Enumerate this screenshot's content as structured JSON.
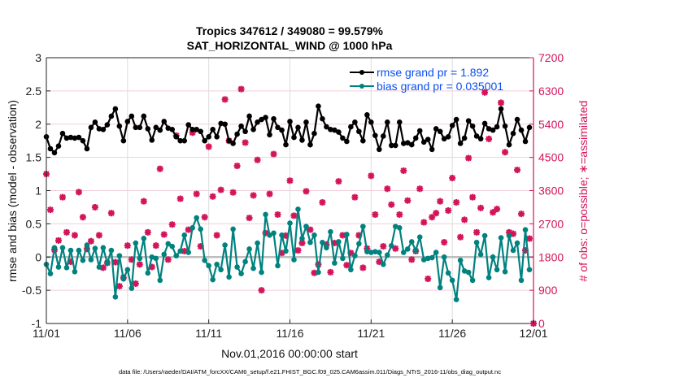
{
  "chart_data": {
    "type": "line",
    "title": [
      "Tropics 347612 / 349080 = 99.579%",
      "SAT_HORIZONTAL_WIND @ 1000 hPa"
    ],
    "xlabel": "Nov.01,2016 00:00:00 start",
    "ylabel": "rmse and bias (model - observation)",
    "y2label": "# of obs: o=possible; ∗=assimilated",
    "footnote": "data file: /Users/raeder/DAI/ATM_forcXX/CAM6_setup/f.e21.FHIST_BGC.f09_025.CAM6assim.011/Diags_NTrS_2016-11/obs_diag_output.nc",
    "x_unit": "days since 11/01 00:00",
    "x_step_days": 0.25,
    "xlim": [
      0,
      30
    ],
    "xticks": [
      0,
      5,
      10,
      15,
      20,
      25,
      30
    ],
    "xtick_labels": [
      "11/01",
      "11/06",
      "11/11",
      "11/16",
      "11/21",
      "11/26",
      "12/01"
    ],
    "ylim": [
      -1,
      3
    ],
    "yticks": [
      -1,
      -0.5,
      0,
      0.5,
      1,
      1.5,
      2,
      2.5,
      3
    ],
    "ytick_labels": [
      "-1",
      "-0.5",
      "0",
      "0.5",
      "1",
      "1.5",
      "2",
      "2.5",
      "3"
    ],
    "y2lim": [
      0,
      7200
    ],
    "y2ticks": [
      0,
      900,
      1800,
      2700,
      3600,
      4500,
      5400,
      6300,
      7200
    ],
    "y2tick_labels": [
      "0",
      "900",
      "1800",
      "2700",
      "3600",
      "4500",
      "5400",
      "6300",
      "7200"
    ],
    "grid": true,
    "legend_position": "top-right",
    "series": [
      {
        "name": "rmse grand pr = 1.892",
        "color": "#000000",
        "axis": "left",
        "values": [
          1.81,
          1.63,
          1.57,
          1.67,
          1.86,
          1.79,
          1.8,
          1.79,
          1.8,
          1.75,
          1.63,
          1.95,
          2.03,
          1.93,
          1.92,
          1.99,
          2.12,
          2.23,
          1.97,
          1.75,
          2.04,
          2.12,
          1.95,
          1.95,
          2.12,
          1.93,
          1.76,
          1.95,
          1.91,
          2.04,
          1.94,
          1.92,
          1.81,
          1.75,
          1.75,
          1.99,
          1.92,
          1.92,
          1.89,
          1.75,
          1.81,
          1.92,
          1.81,
          2.01,
          2.0,
          1.75,
          1.71,
          1.85,
          1.97,
          1.89,
          2.12,
          1.92,
          2.03,
          2.07,
          2.1,
          1.84,
          2.08,
          1.95,
          1.91,
          1.69,
          2.04,
          1.8,
          1.95,
          1.76,
          2.03,
          1.69,
          1.86,
          2.27,
          2.08,
          1.96,
          1.92,
          1.91,
          1.88,
          1.79,
          1.74,
          1.96,
          2.03,
          1.89,
          1.75,
          2.14,
          2.03,
          1.83,
          1.62,
          1.82,
          2.03,
          1.68,
          1.68,
          2.03,
          1.71,
          1.72,
          1.69,
          1.79,
          1.9,
          1.73,
          1.77,
          1.62,
          1.93,
          1.89,
          1.78,
          1.81,
          1.98,
          2.07,
          1.71,
          1.79,
          2.05,
          1.97,
          1.82,
          1.78,
          2.01,
          1.93,
          1.91,
          1.96,
          2.23,
          1.97,
          1.69,
          1.86,
          2.07,
          1.91,
          1.74,
          1.95
        ]
      },
      {
        "name": "bias grand pr = 0.035001",
        "color": "#00827f",
        "axis": "left",
        "values": [
          -0.11,
          -0.25,
          0.14,
          -0.15,
          0.14,
          -0.16,
          0.1,
          -0.22,
          0.1,
          -0.05,
          0.18,
          -0.04,
          0.13,
          -0.15,
          0.14,
          -0.09,
          0.1,
          -0.6,
          0.02,
          -0.33,
          -0.19,
          -0.47,
          0.21,
          -0.02,
          0.28,
          -0.24,
          0.0,
          -0.02,
          -0.35,
          0.04,
          0.2,
          0.16,
          0.02,
          0.09,
          0.33,
          0.07,
          0.44,
          0.59,
          0.42,
          -0.05,
          -0.13,
          -0.34,
          -0.11,
          -0.19,
          0.18,
          -0.3,
          0.42,
          -0.15,
          -0.25,
          -0.07,
          0.12,
          -0.17,
          0.21,
          -0.23,
          0.64,
          0.33,
          0.36,
          -0.13,
          0.33,
          0.09,
          0.51,
          -0.04,
          0.72,
          0.28,
          0.46,
          0.22,
          0.33,
          -0.23,
          0.22,
          0.14,
          0.38,
          -0.09,
          0.23,
          -0.02,
          0.34,
          -0.19,
          0.02,
          0.2,
          0.46,
          0.08,
          0.07,
          0.08,
          0.07,
          -0.11,
          0.03,
          0.17,
          0.46,
          0.44,
          0.07,
          0.12,
          0.23,
          0.1,
          0.3,
          -0.04,
          -0.02,
          -0.01,
          0.07,
          -0.46,
          0.0,
          -0.24,
          -0.35,
          -0.64,
          -0.05,
          -0.21,
          -0.23,
          -0.35,
          0.22,
          0.04,
          0.32,
          -0.31,
          0.0,
          -0.19,
          0.29,
          -0.22,
          0.32,
          0.1,
          0.21,
          -0.35,
          0.41,
          -0.19
        ]
      },
      {
        "name": "# of obs assimilated",
        "color": "#d4145a",
        "axis": "right",
        "marker": "asterisk",
        "values": [
          4050,
          3080,
          2000,
          2250,
          3420,
          2470,
          1670,
          2390,
          3560,
          2880,
          2020,
          2230,
          3150,
          2390,
          1510,
          1640,
          2990,
          1660,
          1010,
          1240,
          2110,
          1730,
          1080,
          1600,
          3310,
          2470,
          1530,
          2110,
          4190,
          2410,
          1730,
          2680,
          5090,
          3380,
          1960,
          2540,
          5170,
          3510,
          2090,
          2880,
          4790,
          3440,
          2390,
          3620,
          6070,
          4950,
          3550,
          4270,
          6350,
          4900,
          2860,
          3470,
          4430,
          900,
          2450,
          3510,
          4590,
          2950,
          1910,
          2380,
          3870,
          2920,
          1980,
          2180,
          3580,
          2540,
          1370,
          1600,
          3280,
          2140,
          1390,
          2180,
          3850,
          2390,
          1580,
          1910,
          3420,
          2390,
          1510,
          2030,
          4000,
          2950,
          1670,
          2090,
          3650,
          3220,
          2030,
          2950,
          4140,
          3330,
          1730,
          1960,
          3650,
          2740,
          1210,
          2880,
          2990,
          3310,
          2200,
          3060,
          3940,
          3280,
          2340,
          2810,
          4480,
          3420,
          2470,
          3130,
          6260,
          5000,
          3010,
          3100,
          5980,
          4640,
          2470,
          2430,
          4160,
          2970,
          1980,
          2300,
          0
        ]
      }
    ]
  }
}
